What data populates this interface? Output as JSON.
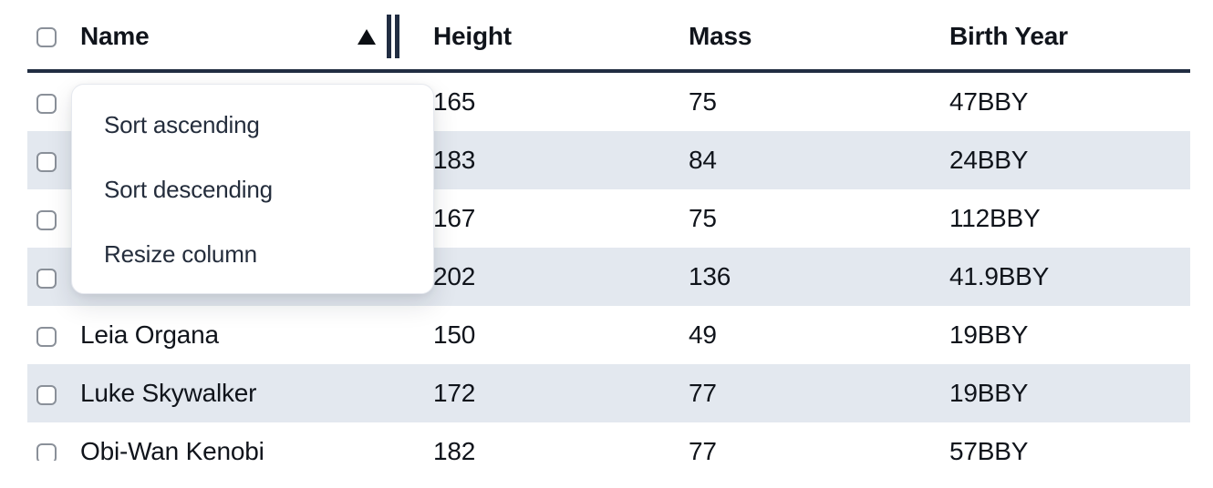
{
  "table": {
    "header": {
      "columns": [
        "Name",
        "Height",
        "Mass",
        "Birth Year"
      ],
      "sort": {
        "column": "Name",
        "direction": "ascending",
        "indicator": "triangle-up"
      },
      "select_all_checked": false
    },
    "rows": [
      {
        "name": "",
        "height": "165",
        "mass": "75",
        "birth_year": "47BBY",
        "checked": false
      },
      {
        "name": "",
        "height": "183",
        "mass": "84",
        "birth_year": "24BBY",
        "checked": false
      },
      {
        "name": "",
        "height": "167",
        "mass": "75",
        "birth_year": "112BBY",
        "checked": false
      },
      {
        "name": "",
        "height": "202",
        "mass": "136",
        "birth_year": "41.9BBY",
        "checked": false
      },
      {
        "name": "Leia Organa",
        "height": "150",
        "mass": "49",
        "birth_year": "19BBY",
        "checked": false
      },
      {
        "name": "Luke Skywalker",
        "height": "172",
        "mass": "77",
        "birth_year": "19BBY",
        "checked": false
      },
      {
        "name": "Obi-Wan Kenobi",
        "height": "182",
        "mass": "77",
        "birth_year": "57BBY",
        "checked": false
      }
    ]
  },
  "context_menu": {
    "open_for_column": "Name",
    "items": [
      {
        "label": "Sort ascending"
      },
      {
        "label": "Sort descending"
      },
      {
        "label": "Resize column"
      }
    ]
  },
  "icons": {
    "sort_ascending_icon": "▲",
    "column_resize_handle": "double-vertical-bars",
    "checkbox_state": "unchecked"
  },
  "colors": {
    "row_stripe": "#e3e8ef",
    "header_border": "#212d42",
    "text": "#10141b",
    "menu_text": "#242d3c",
    "checkbox_border": "#8a9099",
    "menu_border": "#e6e9ef",
    "menu_bg": "#ffffff"
  }
}
